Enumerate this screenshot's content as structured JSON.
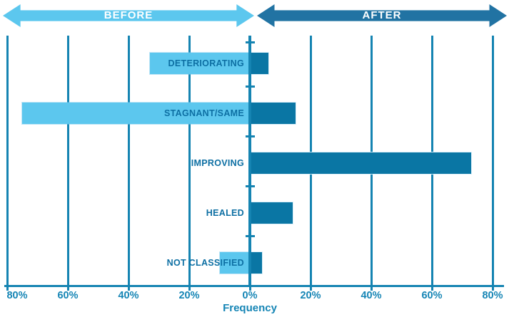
{
  "header": {
    "before_label": "BEFORE",
    "after_label": "AFTER",
    "before_color": "#5CC7EE",
    "after_color": "#2173A3"
  },
  "chart_data": {
    "type": "bar",
    "subtype": "horizontal-diverging",
    "title": "",
    "xlabel": "Frequency",
    "categories": [
      "DETERIORATING",
      "STAGNANT/SAME",
      "IMPROVING",
      "HEALED",
      "NOT CLASSIFIED"
    ],
    "series": [
      {
        "name": "BEFORE",
        "side": "left",
        "color": "#5CC7EE",
        "values": [
          33,
          75,
          0,
          0,
          10
        ]
      },
      {
        "name": "AFTER",
        "side": "right",
        "color": "#0A76A4",
        "values": [
          6,
          15,
          73,
          14,
          4
        ]
      }
    ],
    "x_ticks": [
      "80%",
      "60%",
      "40%",
      "20%",
      "0%",
      "20%",
      "40%",
      "60%",
      "80%"
    ],
    "x_tick_values": [
      -80,
      -60,
      -40,
      -20,
      0,
      20,
      40,
      60,
      80
    ],
    "xlim": [
      -80,
      80
    ],
    "grid": true,
    "axis_color": "#1584B2",
    "tick_label_color": "#1585B5",
    "category_label_color": "#0D6FA3"
  }
}
